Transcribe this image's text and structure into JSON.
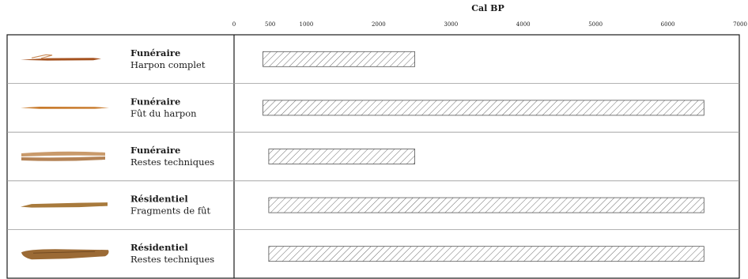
{
  "chart_data": {
    "type": "bar",
    "subtype": "horizontal-range",
    "title": "",
    "xlabel": "Cal BP",
    "ylabel": "",
    "xlim": [
      0,
      7000
    ],
    "grid": false,
    "legend": "none",
    "x_ticks": [
      0,
      500,
      1000,
      2000,
      3000,
      4000,
      5000,
      6000,
      7000
    ],
    "x_tick_labels": [
      "0",
      "500",
      "1000",
      "2000",
      "3000",
      "4000",
      "5000",
      "6000",
      "7000"
    ],
    "bar_fill": "hatched",
    "colors": {
      "bar_stroke": "#555555",
      "hatch": "#6e6e6e",
      "frame": "#1a1a1a",
      "separator": "#999999"
    },
    "rows": [
      {
        "context": "Funéraire",
        "object": "Harpon complet",
        "icon": "harpoon-complete-icon",
        "start": 400,
        "end": 2500
      },
      {
        "context": "Funéraire",
        "object": "Fût du harpon",
        "icon": "harpoon-shaft-icon",
        "start": 400,
        "end": 6500
      },
      {
        "context": "Funéraire",
        "object": "Restes techniques",
        "icon": "technical-remains-icon",
        "start": 480,
        "end": 2500
      },
      {
        "context": "Résidentiel",
        "object": "Fragments de fût",
        "icon": "shaft-fragments-icon",
        "start": 480,
        "end": 6500
      },
      {
        "context": "Résidentiel",
        "object": "Restes techniques",
        "icon": "technical-remains-residential-icon",
        "start": 480,
        "end": 6500
      }
    ]
  }
}
